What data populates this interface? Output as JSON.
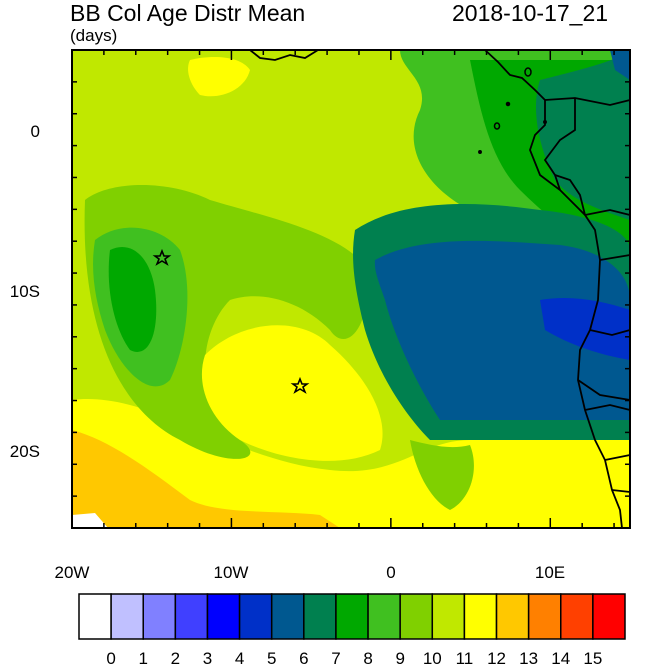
{
  "header": {
    "title": "BB Col Age Distr Mean",
    "units": "(days)",
    "datetime": "2018-10-17_21"
  },
  "map": {
    "lon_range": [
      -20,
      15
    ],
    "lat_range": [
      -25,
      5
    ],
    "x_ticks": [
      {
        "label": "20W",
        "lon": -20
      },
      {
        "label": "10W",
        "lon": -10
      },
      {
        "label": "0",
        "lon": 0
      },
      {
        "label": "10E",
        "lon": 10
      }
    ],
    "y_ticks": [
      {
        "label": "0",
        "lat": 0
      },
      {
        "label": "10S",
        "lat": -10
      },
      {
        "label": "20S",
        "lat": -20
      }
    ],
    "markers": [
      {
        "name": "star-marker-west",
        "lon": -14.4,
        "lat": -8
      },
      {
        "name": "star-marker-center",
        "lon": -5.8,
        "lat": -16
      }
    ]
  },
  "colorbar": {
    "labels": [
      "0",
      "1",
      "2",
      "3",
      "4",
      "5",
      "6",
      "7",
      "8",
      "9",
      "10",
      "11",
      "12",
      "13",
      "14",
      "15"
    ],
    "colors": [
      "#ffffff",
      "#c0c0ff",
      "#8080ff",
      "#4040ff",
      "#0000ff",
      "#0030c8",
      "#005890",
      "#00804f",
      "#00a800",
      "#40c020",
      "#80d000",
      "#c0e800",
      "#ffff00",
      "#ffc800",
      "#ff8000",
      "#ff4000",
      "#ff0000"
    ]
  }
}
